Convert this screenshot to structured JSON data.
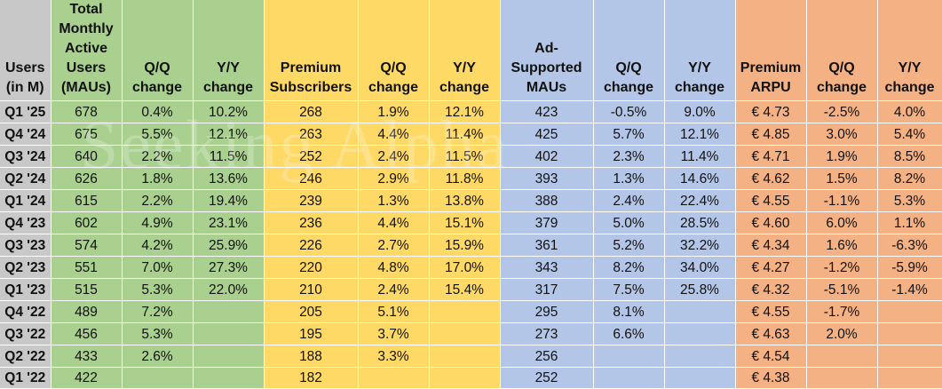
{
  "watermark": "Seeking Alpha",
  "colors": {
    "label_gray": "#c8c8c8",
    "mau_green": "#a9d08e",
    "premium_yellow": "#ffd966",
    "adsupported_blue": "#b4c6e7",
    "arpu_orange": "#f4b183"
  },
  "headers": [
    "Users (in M)",
    "Total Monthly Active Users (MAUs)",
    "Q/Q change",
    "Y/Y change",
    "Premium Subscribers",
    "Q/Q change",
    "Y/Y change",
    "Ad-Supported MAUs",
    "Q/Q change",
    "Y/Y change",
    "Premium ARPU",
    "Q/Q change",
    "Y/Y change"
  ],
  "rows": [
    [
      "Q1 '25",
      "678",
      "0.4%",
      "10.2%",
      "268",
      "1.9%",
      "12.1%",
      "423",
      "-0.5%",
      "9.0%",
      "€ 4.73",
      "-2.5%",
      "4.0%"
    ],
    [
      "Q4 '24",
      "675",
      "5.5%",
      "12.1%",
      "263",
      "4.4%",
      "11.4%",
      "425",
      "5.7%",
      "12.1%",
      "€ 4.85",
      "3.0%",
      "5.4%"
    ],
    [
      "Q3 '24",
      "640",
      "2.2%",
      "11.5%",
      "252",
      "2.4%",
      "11.5%",
      "402",
      "2.3%",
      "11.4%",
      "€ 4.71",
      "1.9%",
      "8.5%"
    ],
    [
      "Q2 '24",
      "626",
      "1.8%",
      "13.6%",
      "246",
      "2.9%",
      "11.8%",
      "393",
      "1.3%",
      "14.6%",
      "€ 4.62",
      "1.5%",
      "8.2%"
    ],
    [
      "Q1 '24",
      "615",
      "2.2%",
      "19.4%",
      "239",
      "1.3%",
      "13.8%",
      "388",
      "2.4%",
      "22.4%",
      "€ 4.55",
      "-1.1%",
      "5.3%"
    ],
    [
      "Q4 '23",
      "602",
      "4.9%",
      "23.1%",
      "236",
      "4.4%",
      "15.1%",
      "379",
      "5.0%",
      "28.5%",
      "€ 4.60",
      "6.0%",
      "1.1%"
    ],
    [
      "Q3 '23",
      "574",
      "4.2%",
      "25.9%",
      "226",
      "2.7%",
      "15.9%",
      "361",
      "5.2%",
      "32.2%",
      "€ 4.34",
      "1.6%",
      "-6.3%"
    ],
    [
      "Q2 '23",
      "551",
      "7.0%",
      "27.3%",
      "220",
      "4.8%",
      "17.0%",
      "343",
      "8.2%",
      "34.0%",
      "€ 4.27",
      "-1.2%",
      "-5.9%"
    ],
    [
      "Q1 '23",
      "515",
      "5.3%",
      "22.0%",
      "210",
      "2.4%",
      "15.4%",
      "317",
      "7.5%",
      "25.8%",
      "€ 4.32",
      "-5.1%",
      "-1.4%"
    ],
    [
      "Q4 '22",
      "489",
      "7.2%",
      "",
      "205",
      "5.1%",
      "",
      "295",
      "8.1%",
      "",
      "€ 4.55",
      "-1.7%",
      ""
    ],
    [
      "Q3 '22",
      "456",
      "5.3%",
      "",
      "195",
      "3.7%",
      "",
      "273",
      "6.6%",
      "",
      "€ 4.63",
      "2.0%",
      ""
    ],
    [
      "Q2 '22",
      "433",
      "2.6%",
      "",
      "188",
      "3.3%",
      "",
      "256",
      "",
      "",
      "€ 4.54",
      "",
      ""
    ],
    [
      "Q1 '22",
      "422",
      "",
      "",
      "182",
      "",
      "",
      "252",
      "",
      "",
      "€ 4.38",
      "",
      ""
    ]
  ]
}
